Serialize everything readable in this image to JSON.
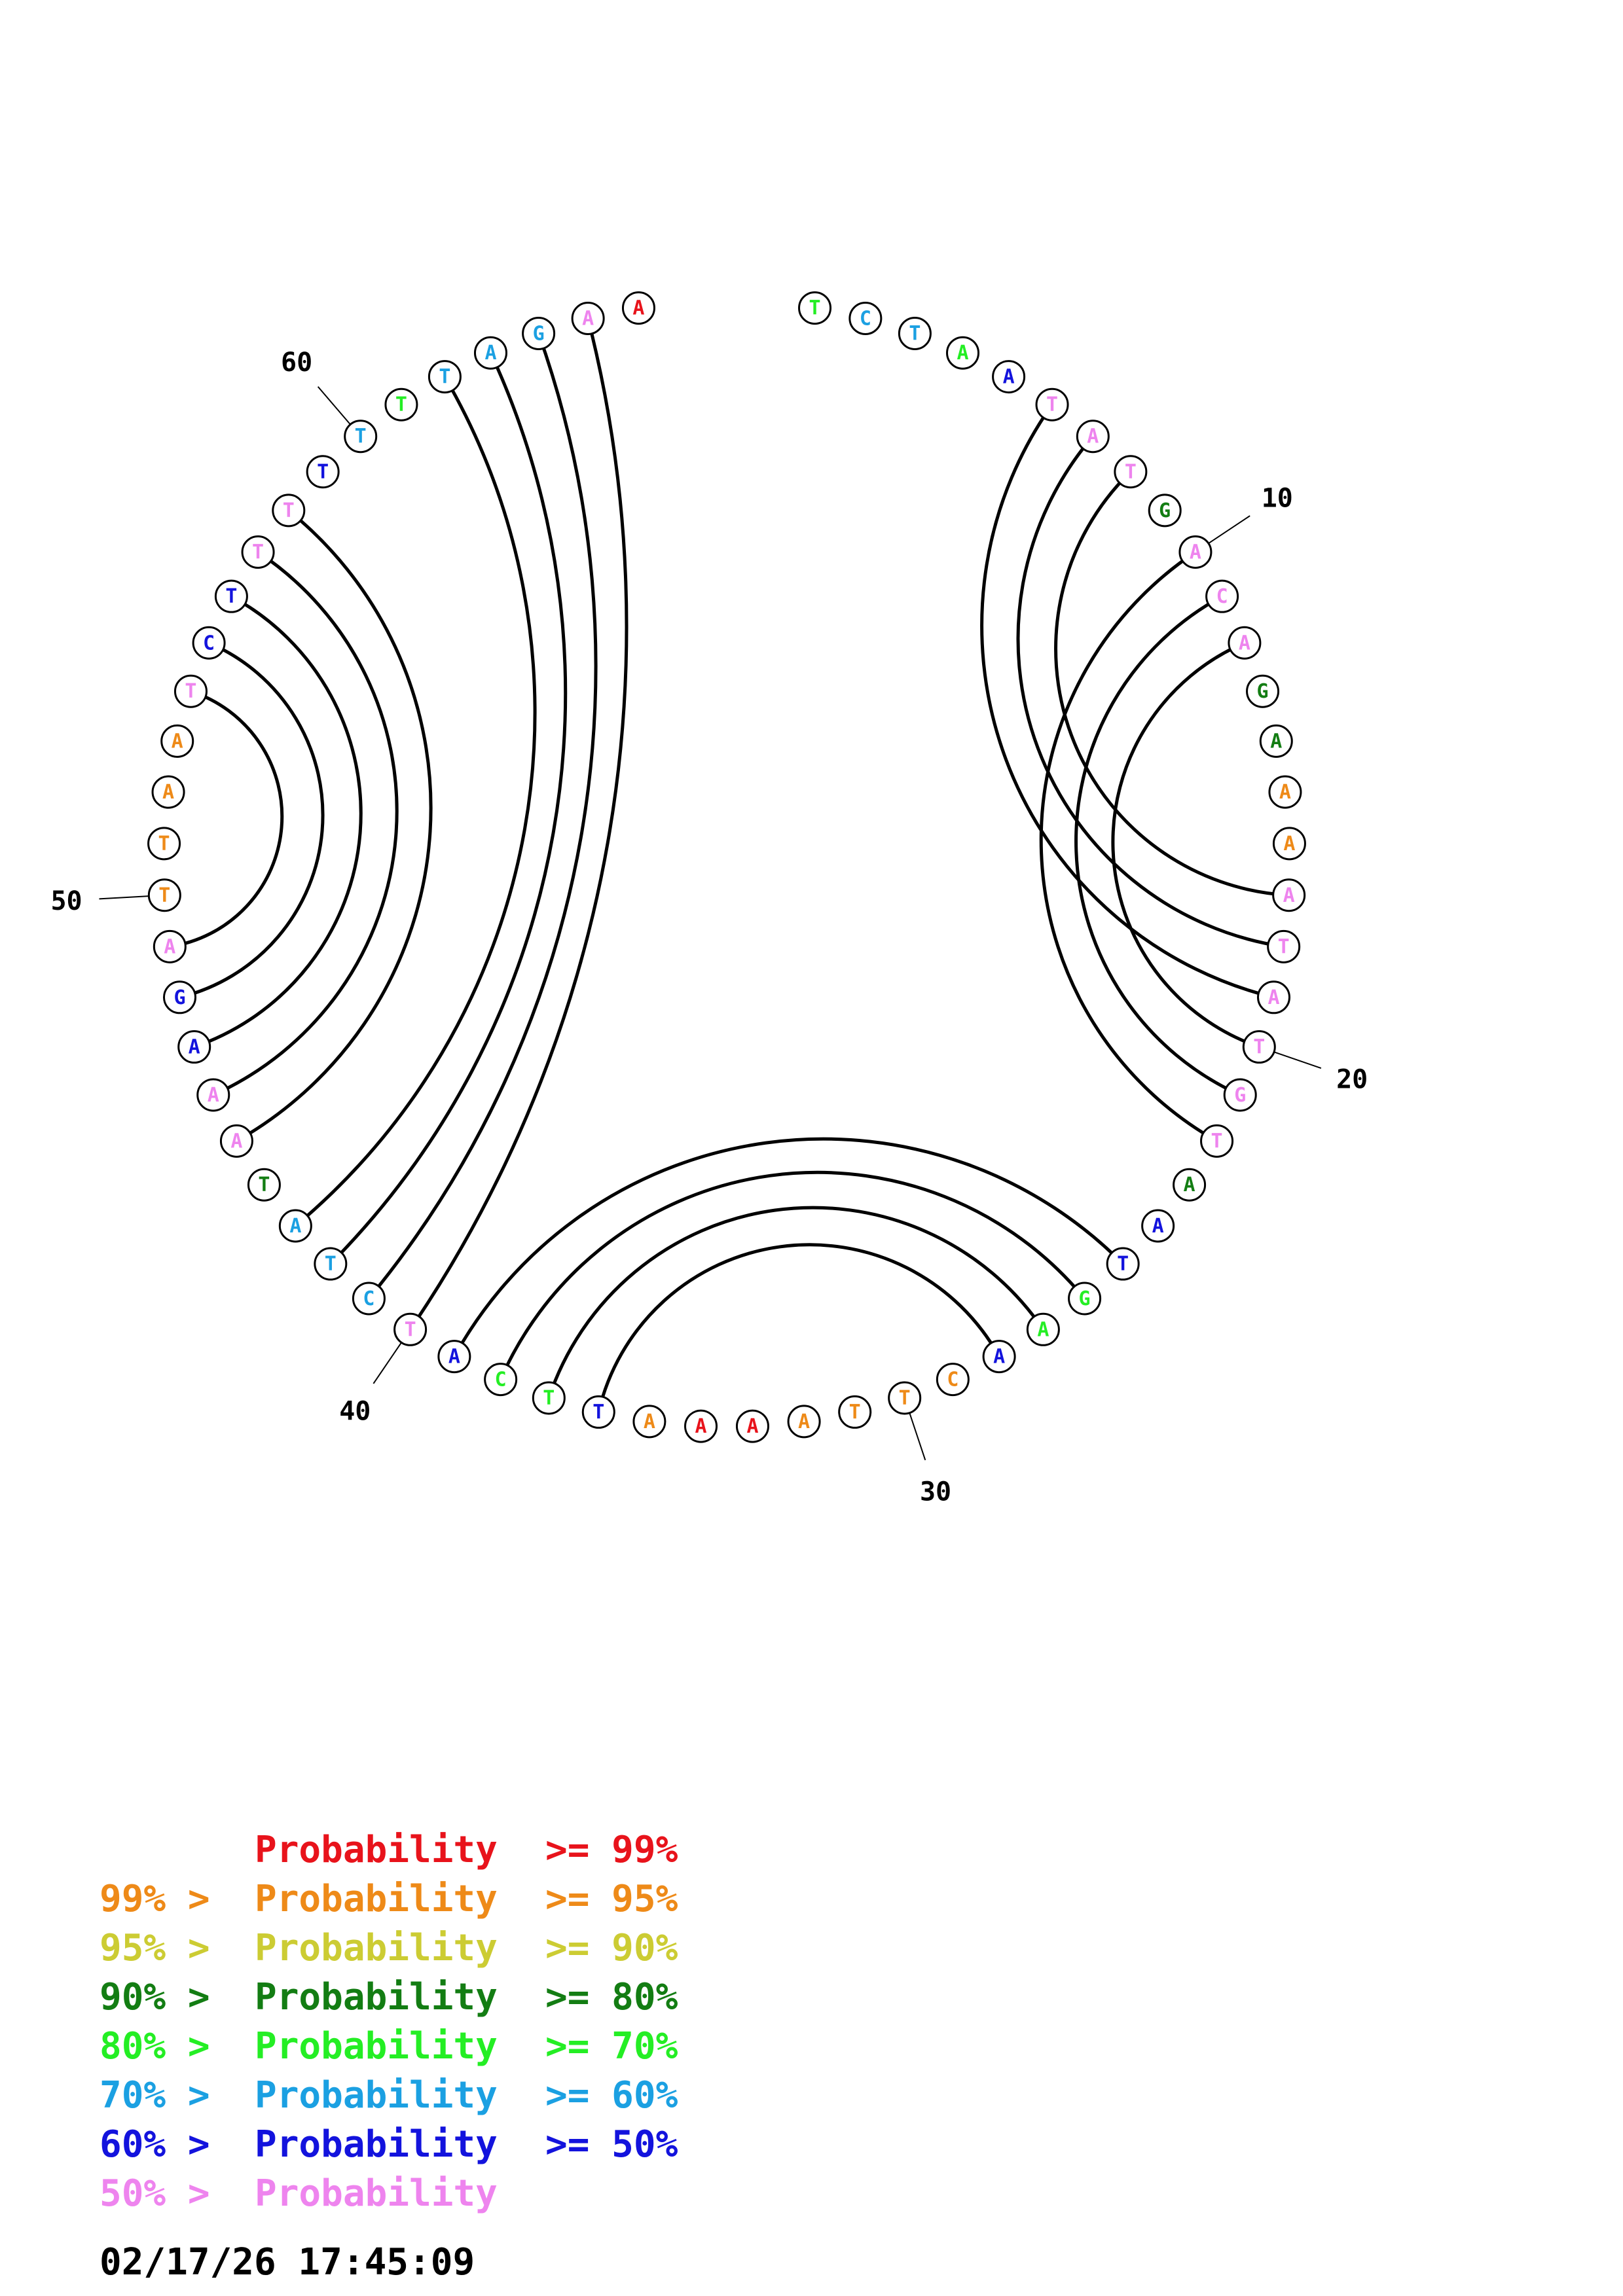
{
  "colors": {
    "p99": "#e8131b",
    "p95": "#ee8a18",
    "p90": "#cccc33",
    "p80": "#137d13",
    "p70": "#24ee24",
    "p60": "#1ba0e2",
    "p50": "#1313dd",
    "plow": "#ee84ee"
  },
  "sequence": [
    {
      "n": 1,
      "base": "T",
      "p": "p70"
    },
    {
      "n": 2,
      "base": "C",
      "p": "p60"
    },
    {
      "n": 3,
      "base": "T",
      "p": "p60"
    },
    {
      "n": 4,
      "base": "A",
      "p": "p70"
    },
    {
      "n": 5,
      "base": "A",
      "p": "p50"
    },
    {
      "n": 6,
      "base": "T",
      "p": "plow"
    },
    {
      "n": 7,
      "base": "A",
      "p": "plow"
    },
    {
      "n": 8,
      "base": "T",
      "p": "plow"
    },
    {
      "n": 9,
      "base": "G",
      "p": "p80"
    },
    {
      "n": 10,
      "base": "A",
      "p": "plow"
    },
    {
      "n": 11,
      "base": "C",
      "p": "plow"
    },
    {
      "n": 12,
      "base": "A",
      "p": "plow"
    },
    {
      "n": 13,
      "base": "G",
      "p": "p80"
    },
    {
      "n": 14,
      "base": "A",
      "p": "p80"
    },
    {
      "n": 15,
      "base": "A",
      "p": "p95"
    },
    {
      "n": 16,
      "base": "A",
      "p": "p95"
    },
    {
      "n": 17,
      "base": "A",
      "p": "plow"
    },
    {
      "n": 18,
      "base": "T",
      "p": "plow"
    },
    {
      "n": 19,
      "base": "A",
      "p": "plow"
    },
    {
      "n": 20,
      "base": "T",
      "p": "plow"
    },
    {
      "n": 21,
      "base": "G",
      "p": "plow"
    },
    {
      "n": 22,
      "base": "T",
      "p": "plow"
    },
    {
      "n": 23,
      "base": "A",
      "p": "p80"
    },
    {
      "n": 24,
      "base": "A",
      "p": "p50"
    },
    {
      "n": 25,
      "base": "T",
      "p": "p50"
    },
    {
      "n": 26,
      "base": "G",
      "p": "p70"
    },
    {
      "n": 27,
      "base": "A",
      "p": "p70"
    },
    {
      "n": 28,
      "base": "A",
      "p": "p50"
    },
    {
      "n": 29,
      "base": "C",
      "p": "p95"
    },
    {
      "n": 30,
      "base": "T",
      "p": "p95"
    },
    {
      "n": 31,
      "base": "T",
      "p": "p95"
    },
    {
      "n": 32,
      "base": "A",
      "p": "p95"
    },
    {
      "n": 33,
      "base": "A",
      "p": "p99"
    },
    {
      "n": 34,
      "base": "A",
      "p": "p99"
    },
    {
      "n": 35,
      "base": "A",
      "p": "p95"
    },
    {
      "n": 36,
      "base": "T",
      "p": "p50"
    },
    {
      "n": 37,
      "base": "T",
      "p": "p70"
    },
    {
      "n": 38,
      "base": "C",
      "p": "p70"
    },
    {
      "n": 39,
      "base": "A",
      "p": "p50"
    },
    {
      "n": 40,
      "base": "T",
      "p": "plow"
    },
    {
      "n": 41,
      "base": "C",
      "p": "p60"
    },
    {
      "n": 42,
      "base": "T",
      "p": "p60"
    },
    {
      "n": 43,
      "base": "A",
      "p": "p60"
    },
    {
      "n": 44,
      "base": "T",
      "p": "p80"
    },
    {
      "n": 45,
      "base": "A",
      "p": "plow"
    },
    {
      "n": 46,
      "base": "A",
      "p": "plow"
    },
    {
      "n": 47,
      "base": "A",
      "p": "p50"
    },
    {
      "n": 48,
      "base": "G",
      "p": "p50"
    },
    {
      "n": 49,
      "base": "A",
      "p": "plow"
    },
    {
      "n": 50,
      "base": "T",
      "p": "p95"
    },
    {
      "n": 51,
      "base": "T",
      "p": "p95"
    },
    {
      "n": 52,
      "base": "A",
      "p": "p95"
    },
    {
      "n": 53,
      "base": "A",
      "p": "p95"
    },
    {
      "n": 54,
      "base": "T",
      "p": "plow"
    },
    {
      "n": 55,
      "base": "C",
      "p": "p50"
    },
    {
      "n": 56,
      "base": "T",
      "p": "p50"
    },
    {
      "n": 57,
      "base": "T",
      "p": "plow"
    },
    {
      "n": 58,
      "base": "T",
      "p": "plow"
    },
    {
      "n": 59,
      "base": "T",
      "p": "p50"
    },
    {
      "n": 60,
      "base": "T",
      "p": "p60"
    },
    {
      "n": 61,
      "base": "T",
      "p": "p70"
    },
    {
      "n": 62,
      "base": "T",
      "p": "p60"
    },
    {
      "n": 63,
      "base": "A",
      "p": "p60"
    },
    {
      "n": 64,
      "base": "G",
      "p": "p60"
    },
    {
      "n": 65,
      "base": "A",
      "p": "plow"
    },
    {
      "n": 66,
      "base": "A",
      "p": "p99"
    }
  ],
  "pairs": [
    [
      6,
      19
    ],
    [
      7,
      18
    ],
    [
      8,
      17
    ],
    [
      10,
      22
    ],
    [
      11,
      21
    ],
    [
      12,
      20
    ],
    [
      25,
      39
    ],
    [
      26,
      38
    ],
    [
      27,
      37
    ],
    [
      28,
      36
    ],
    [
      40,
      65
    ],
    [
      41,
      64
    ],
    [
      42,
      63
    ],
    [
      43,
      62
    ],
    [
      45,
      58
    ],
    [
      46,
      57
    ],
    [
      47,
      56
    ],
    [
      48,
      55
    ],
    [
      49,
      54
    ]
  ],
  "index_labels": [
    {
      "n": 10,
      "text": "10"
    },
    {
      "n": 20,
      "text": "20"
    },
    {
      "n": 30,
      "text": "30"
    },
    {
      "n": 40,
      "text": "40"
    },
    {
      "n": 50,
      "text": "50"
    },
    {
      "n": 60,
      "text": "60"
    }
  ],
  "legend": [
    {
      "prefix": "",
      "mid": "Probability",
      "suffix": ">= 99%",
      "color": "p99"
    },
    {
      "prefix": "99% >",
      "mid": "Probability",
      "suffix": ">= 95%",
      "color": "p95"
    },
    {
      "prefix": "95% >",
      "mid": "Probability",
      "suffix": ">= 90%",
      "color": "p90"
    },
    {
      "prefix": "90% >",
      "mid": "Probability",
      "suffix": ">= 80%",
      "color": "p80"
    },
    {
      "prefix": "80% >",
      "mid": "Probability",
      "suffix": ">= 70%",
      "color": "p70"
    },
    {
      "prefix": "70% >",
      "mid": "Probability",
      "suffix": ">= 60%",
      "color": "p60"
    },
    {
      "prefix": "60% >",
      "mid": "Probability",
      "suffix": ">= 50%",
      "color": "p50"
    },
    {
      "prefix": "50% >",
      "mid": "Probability",
      "suffix": "",
      "color": "plow"
    }
  ],
  "timestamp": "02/17/26 17:45:09"
}
